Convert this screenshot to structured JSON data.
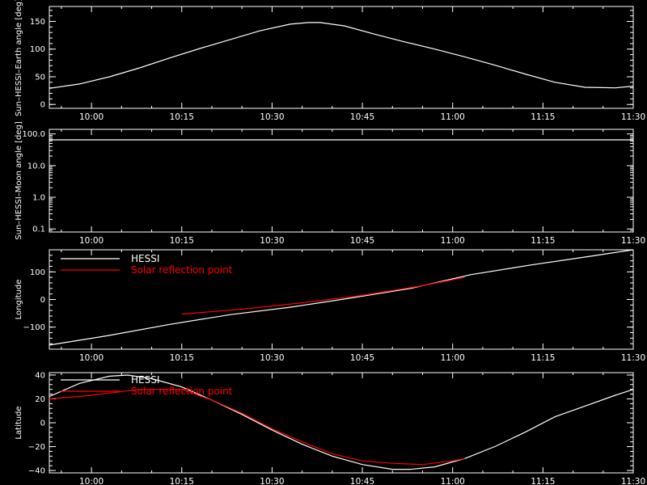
{
  "colors": {
    "background": "#000000",
    "axes": "#ffffff",
    "hessi": "#ffffff",
    "solar": "#ff0000"
  },
  "chart_data": [
    {
      "type": "line",
      "ylabel": "Sun–HESSI–Earth angle [deg]",
      "yscale": "linear",
      "xlim": [
        "09:53",
        "11:30"
      ],
      "ylim": [
        -7,
        177
      ],
      "xticks": [
        "10:00",
        "10:15",
        "10:30",
        "10:45",
        "11:00",
        "11:15",
        "11:30"
      ],
      "yticks": [
        "0",
        "50",
        "100",
        "150"
      ],
      "series": [
        {
          "color": "#ffffff",
          "x": [
            "09:53",
            "09:58",
            "10:03",
            "10:08",
            "10:13",
            "10:18",
            "10:23",
            "10:28",
            "10:33",
            "10:36",
            "10:38",
            "10:42",
            "10:47",
            "10:52",
            "10:57",
            "11:02",
            "11:07",
            "11:12",
            "11:17",
            "11:22",
            "11:27",
            "11:30"
          ],
          "y": [
            29,
            37,
            50,
            66,
            84,
            101,
            117,
            133,
            145,
            148,
            148,
            142,
            127,
            113,
            100,
            86,
            71,
            55,
            40,
            31,
            30,
            33
          ]
        }
      ]
    },
    {
      "type": "line",
      "ylabel": "Sun–HESSI–Moon angle [deg]",
      "yscale": "log",
      "xlim": [
        "09:53",
        "11:30"
      ],
      "ylim": [
        0.08,
        140
      ],
      "xticks": [
        "10:00",
        "10:15",
        "10:30",
        "10:45",
        "11:00",
        "11:15",
        "11:30"
      ],
      "yticks": [
        "0.1",
        "1.0",
        "10.0",
        "100.0"
      ],
      "series": [
        {
          "color": "#ffffff",
          "x": [
            "09:53",
            "11:30"
          ],
          "y": [
            65,
            65
          ]
        }
      ]
    },
    {
      "type": "line",
      "ylabel": "Longitude",
      "yscale": "linear",
      "xlim": [
        "09:53",
        "11:30"
      ],
      "ylim": [
        -180,
        180
      ],
      "xticks": [
        "10:00",
        "10:15",
        "10:30",
        "10:45",
        "11:00",
        "11:15",
        "11:30"
      ],
      "yticks": [
        "−100",
        "0",
        "100"
      ],
      "legend": {
        "position": "top-left"
      },
      "series": [
        {
          "name": "HESSI",
          "color": "#ffffff",
          "x": [
            "09:53",
            "10:03",
            "10:13",
            "10:23",
            "10:33",
            "10:43",
            "10:53",
            "11:03",
            "11:13",
            "11:23",
            "11:30"
          ],
          "y": [
            -165,
            -130,
            -90,
            -55,
            -28,
            5,
            40,
            90,
            125,
            157,
            180
          ]
        },
        {
          "name": "Solar reflection point",
          "color": "#ff0000",
          "x": [
            "10:15",
            "10:25",
            "10:35",
            "10:45",
            "10:55",
            "11:02"
          ],
          "y": [
            -53,
            -35,
            -12,
            15,
            50,
            80
          ]
        }
      ]
    },
    {
      "type": "line",
      "ylabel": "Latitude",
      "yscale": "linear",
      "xlim": [
        "09:53",
        "11:30"
      ],
      "ylim": [
        -42,
        42
      ],
      "xticks": [
        "10:00",
        "10:15",
        "10:30",
        "10:45",
        "11:00",
        "11:15",
        "11:30"
      ],
      "yticks": [
        "−40",
        "−20",
        "0",
        "20",
        "40"
      ],
      "legend": {
        "position": "top-left"
      },
      "series": [
        {
          "name": "HESSI",
          "color": "#ffffff",
          "x": [
            "09:53",
            "09:58",
            "10:03",
            "10:06",
            "10:10",
            "10:15",
            "10:20",
            "10:25",
            "10:30",
            "10:35",
            "10:40",
            "10:45",
            "10:50",
            "10:53",
            "10:57",
            "11:02",
            "11:07",
            "11:12",
            "11:17",
            "11:22",
            "11:27",
            "11:30"
          ],
          "y": [
            22,
            33,
            39,
            40,
            37,
            30,
            19,
            7,
            -6,
            -18,
            -28,
            -35,
            -39,
            -39,
            -37,
            -30,
            -20,
            -8,
            5,
            14,
            23,
            28
          ]
        },
        {
          "name": "Solar reflection point",
          "color": "#ff0000",
          "x": [
            "09:53",
            "10:00",
            "10:08",
            "10:15",
            "10:20",
            "10:25",
            "10:30",
            "10:35",
            "10:40",
            "10:45",
            "10:50",
            "10:55",
            "11:00",
            "11:02"
          ],
          "y": [
            20,
            23,
            28,
            28,
            19,
            8,
            -5,
            -16,
            -26,
            -32,
            -34,
            -35,
            -32,
            -30
          ]
        }
      ]
    }
  ]
}
